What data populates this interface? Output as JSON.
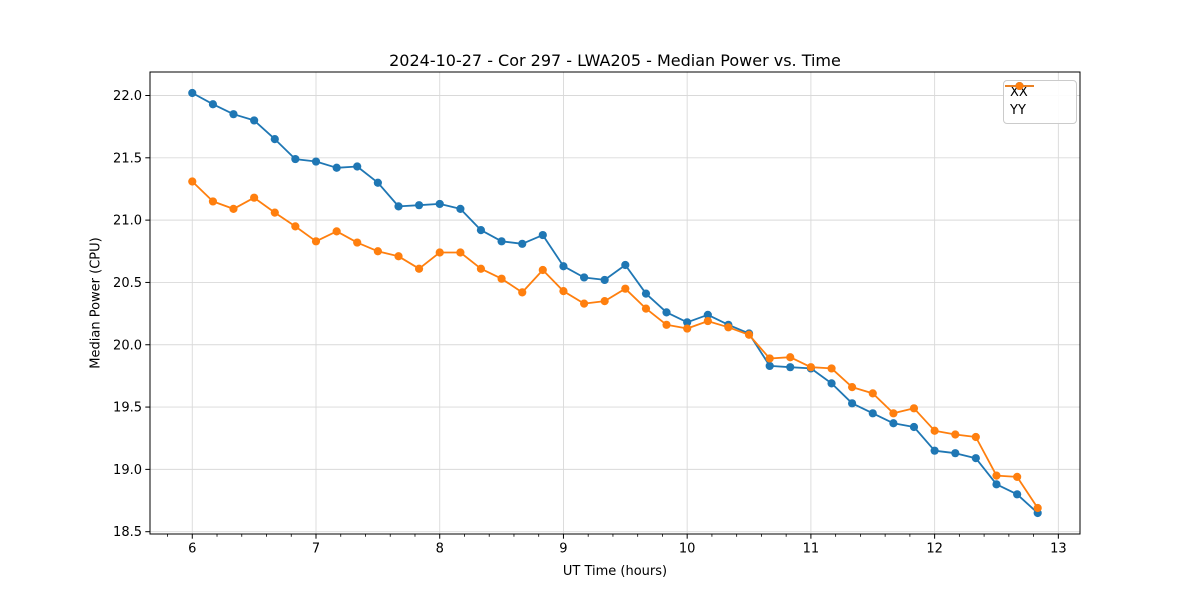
{
  "figure": {
    "title": "2024-10-27 - Cor 297 - LWA205 - Median Power vs. Time"
  },
  "chart_data": {
    "type": "line",
    "title": "2024-10-27 - Cor 297 - LWA205 - Median Power vs. Time",
    "xlabel": "UT Time (hours)",
    "ylabel": "Median Power (CPU)",
    "x": [
      6.0,
      6.167,
      6.333,
      6.5,
      6.667,
      6.833,
      7.0,
      7.167,
      7.333,
      7.5,
      7.667,
      7.833,
      8.0,
      8.167,
      8.333,
      8.5,
      8.667,
      8.833,
      9.0,
      9.167,
      9.333,
      9.5,
      9.667,
      9.833,
      10.0,
      10.167,
      10.333,
      10.5,
      10.667,
      10.833,
      11.0,
      11.167,
      11.333,
      11.5,
      11.667,
      11.833,
      12.0,
      12.167,
      12.333,
      12.5,
      12.667,
      12.833
    ],
    "series": [
      {
        "name": "XX",
        "color": "#1f77b4",
        "values": [
          22.02,
          21.93,
          21.85,
          21.8,
          21.65,
          21.49,
          21.47,
          21.42,
          21.43,
          21.3,
          21.11,
          21.12,
          21.13,
          21.09,
          20.92,
          20.83,
          20.81,
          20.88,
          20.63,
          20.54,
          20.52,
          20.64,
          20.41,
          20.26,
          20.18,
          20.24,
          20.16,
          20.09,
          19.83,
          19.82,
          19.81,
          19.69,
          19.53,
          19.45,
          19.37,
          19.34,
          19.15,
          19.13,
          19.09,
          18.88,
          18.8,
          18.65
        ]
      },
      {
        "name": "YY",
        "color": "#ff7f0e",
        "values": [
          21.31,
          21.15,
          21.09,
          21.18,
          21.06,
          20.95,
          20.83,
          20.91,
          20.82,
          20.75,
          20.71,
          20.61,
          20.74,
          20.74,
          20.61,
          20.53,
          20.42,
          20.6,
          20.43,
          20.33,
          20.35,
          20.45,
          20.29,
          20.16,
          20.13,
          20.19,
          20.14,
          20.08,
          19.89,
          19.9,
          19.82,
          19.81,
          19.66,
          19.61,
          19.45,
          19.49,
          19.31,
          19.28,
          19.26,
          18.95,
          18.94,
          18.69
        ]
      }
    ],
    "xlim": [
      5.6583,
      13.175
    ],
    "ylim": [
      18.4815,
      22.1885
    ],
    "xticks": [
      6,
      7,
      8,
      9,
      10,
      11,
      12,
      13
    ],
    "yticks": [
      18.5,
      19.0,
      19.5,
      20.0,
      20.5,
      21.0,
      21.5,
      22.0
    ],
    "x_minor_step": 0.2,
    "grid": true,
    "grid_color": "#d9d9d9",
    "legend_position": "upper right",
    "marker": "o",
    "line_width": 1.8,
    "marker_radius": 4.1
  }
}
